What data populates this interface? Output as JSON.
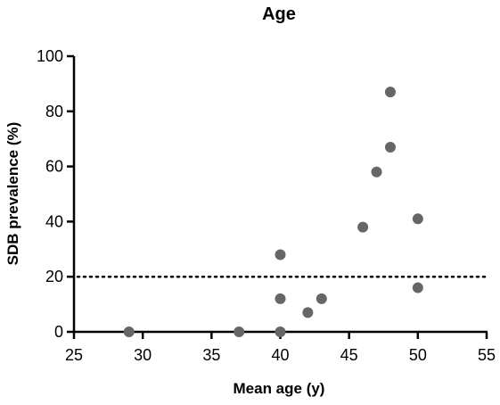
{
  "chart_data": {
    "type": "scatter",
    "title": "Age",
    "xlabel": "Mean age (y)",
    "ylabel": "SDB prevalence (%)",
    "xlim": [
      25,
      55
    ],
    "ylim": [
      0,
      100
    ],
    "xticks": [
      "25",
      "30",
      "35",
      "40",
      "45",
      "50",
      "55"
    ],
    "yticks": [
      "0",
      "20",
      "40",
      "60",
      "80",
      "100"
    ],
    "reference_line": {
      "y": 20,
      "style": "dotted"
    },
    "point_color": "#666666",
    "points": [
      {
        "x": 29,
        "y": 0
      },
      {
        "x": 37,
        "y": 0
      },
      {
        "x": 40,
        "y": 0
      },
      {
        "x": 40,
        "y": 12
      },
      {
        "x": 40,
        "y": 28
      },
      {
        "x": 42,
        "y": 7
      },
      {
        "x": 43,
        "y": 12
      },
      {
        "x": 46,
        "y": 38
      },
      {
        "x": 47,
        "y": 58
      },
      {
        "x": 48,
        "y": 67
      },
      {
        "x": 48,
        "y": 87
      },
      {
        "x": 50,
        "y": 16
      },
      {
        "x": 50,
        "y": 41
      }
    ],
    "grid": false,
    "legend": "none"
  }
}
